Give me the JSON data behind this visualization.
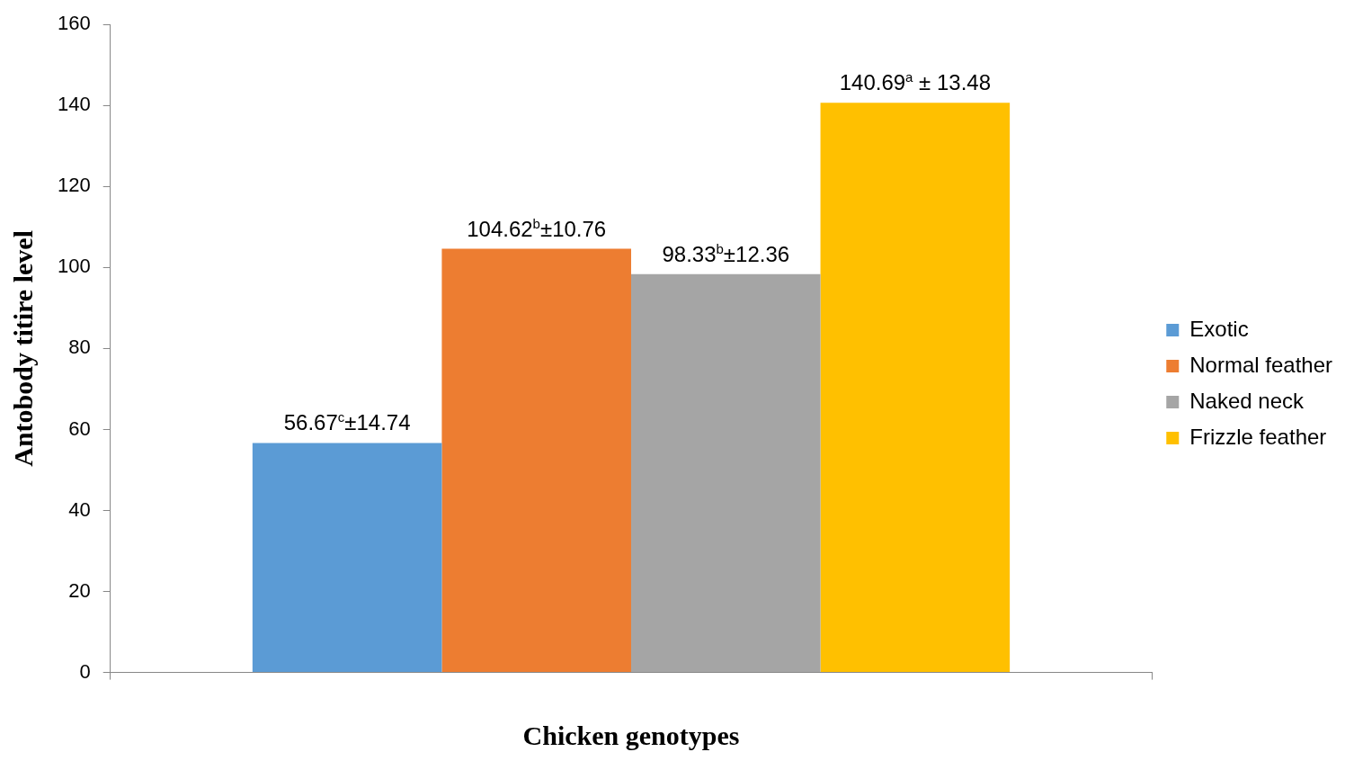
{
  "chart_data": {
    "type": "bar",
    "xlabel": "Chicken genotypes",
    "ylabel": "Antobody titire level",
    "categories": [
      null
    ],
    "series": [
      {
        "name": "Exotic",
        "color": "#5b9bd5",
        "values": [
          56.67
        ],
        "value_labels": [
          "56.67$^{c}$±14.74"
        ]
      },
      {
        "name": "Normal feather",
        "color": "#ed7d31",
        "values": [
          104.62
        ],
        "value_labels": [
          "104.62$^{b}$±10.76"
        ]
      },
      {
        "name": "Naked neck",
        "color": "#a5a5a5",
        "values": [
          98.33
        ],
        "value_labels": [
          "98.33$^{b}$±12.36"
        ]
      },
      {
        "name": "Frizzle feather",
        "color": "#ffc000",
        "values": [
          140.69
        ],
        "value_labels": [
          "140.69$^{a}$ ± 13.48"
        ]
      }
    ],
    "ylim": [
      0,
      160
    ],
    "yticks": [
      0,
      20,
      40,
      60,
      80,
      100,
      120,
      140,
      160
    ],
    "grid": false,
    "legend": "right"
  }
}
